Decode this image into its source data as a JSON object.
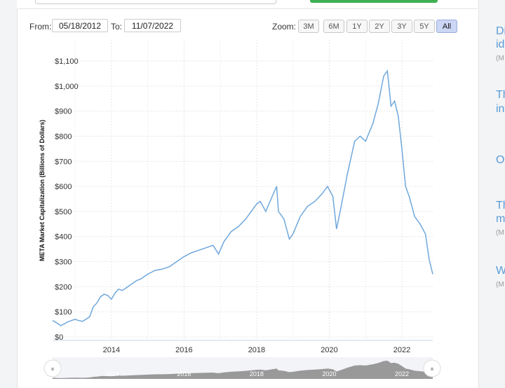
{
  "range": {
    "from_label": "From:",
    "from_value": "05/18/2012",
    "to_label": "To:",
    "to_value": "11/07/2022"
  },
  "zoom": {
    "label": "Zoom:",
    "buttons": [
      "3M",
      "6M",
      "1Y",
      "2Y",
      "3Y",
      "5Y",
      "All"
    ],
    "active": "All"
  },
  "navigator": {
    "years": [
      "2014",
      "2016",
      "2018",
      "2020",
      "2022"
    ],
    "handle_left": "⏸",
    "handle_right": "⏸"
  },
  "news": [
    {
      "line1": "Di",
      "line2": "ide",
      "source": "(M"
    },
    {
      "line1": "Th",
      "line2": "inv",
      "source": ""
    },
    {
      "line1": "Oi",
      "line2": "",
      "source": ""
    },
    {
      "line1": "Th",
      "line2": "m",
      "source": "(M"
    },
    {
      "line1": "W",
      "line2": "",
      "source": "(M"
    }
  ],
  "chart_data": {
    "type": "line",
    "ylabel": "META Market Capitalization (Billions of Dollars)",
    "xlabel": "",
    "ylim": [
      0,
      1100
    ],
    "yticks": [
      "$0",
      "$100",
      "$200",
      "$300",
      "$400",
      "$500",
      "$600",
      "$700",
      "$800",
      "$900",
      "$1,000",
      "$1,100"
    ],
    "xticks": [
      "2014",
      "2016",
      "2018",
      "2020",
      "2022"
    ],
    "grid": true,
    "line_color": "#6fa8dc",
    "series": [
      {
        "x": [
          2012.38,
          2012.5,
          2012.6,
          2012.7,
          2012.8,
          2012.9,
          2013.0,
          2013.1,
          2013.2,
          2013.3,
          2013.4,
          2013.5,
          2013.6,
          2013.7,
          2013.8,
          2013.9,
          2014.0,
          2014.1,
          2014.2,
          2014.3,
          2014.4,
          2014.5,
          2014.6,
          2014.7,
          2014.8,
          2014.9,
          2015.0,
          2015.2,
          2015.4,
          2015.6,
          2015.8,
          2016.0,
          2016.2,
          2016.4,
          2016.6,
          2016.8,
          2016.95,
          2017.1,
          2017.3,
          2017.5,
          2017.7,
          2017.9,
          2018.0,
          2018.1,
          2018.25,
          2018.4,
          2018.55,
          2018.6,
          2018.75,
          2018.9,
          2019.0,
          2019.2,
          2019.4,
          2019.6,
          2019.8,
          2019.95,
          2020.1,
          2020.2,
          2020.3,
          2020.5,
          2020.7,
          2020.85,
          2021.0,
          2021.2,
          2021.35,
          2021.5,
          2021.6,
          2021.7,
          2021.8,
          2021.9,
          2022.0,
          2022.1,
          2022.2,
          2022.35,
          2022.5,
          2022.65,
          2022.75,
          2022.85
        ],
        "values": [
          65,
          55,
          45,
          52,
          60,
          65,
          70,
          65,
          62,
          70,
          80,
          120,
          135,
          160,
          170,
          165,
          150,
          175,
          190,
          185,
          195,
          205,
          215,
          225,
          230,
          240,
          250,
          265,
          270,
          280,
          300,
          320,
          335,
          345,
          355,
          365,
          330,
          380,
          420,
          440,
          470,
          510,
          530,
          540,
          500,
          550,
          600,
          500,
          470,
          390,
          410,
          480,
          520,
          540,
          570,
          600,
          560,
          430,
          500,
          650,
          780,
          800,
          780,
          850,
          930,
          1040,
          1060,
          920,
          940,
          880,
          750,
          600,
          560,
          480,
          450,
          410,
          310,
          250
        ]
      }
    ]
  }
}
